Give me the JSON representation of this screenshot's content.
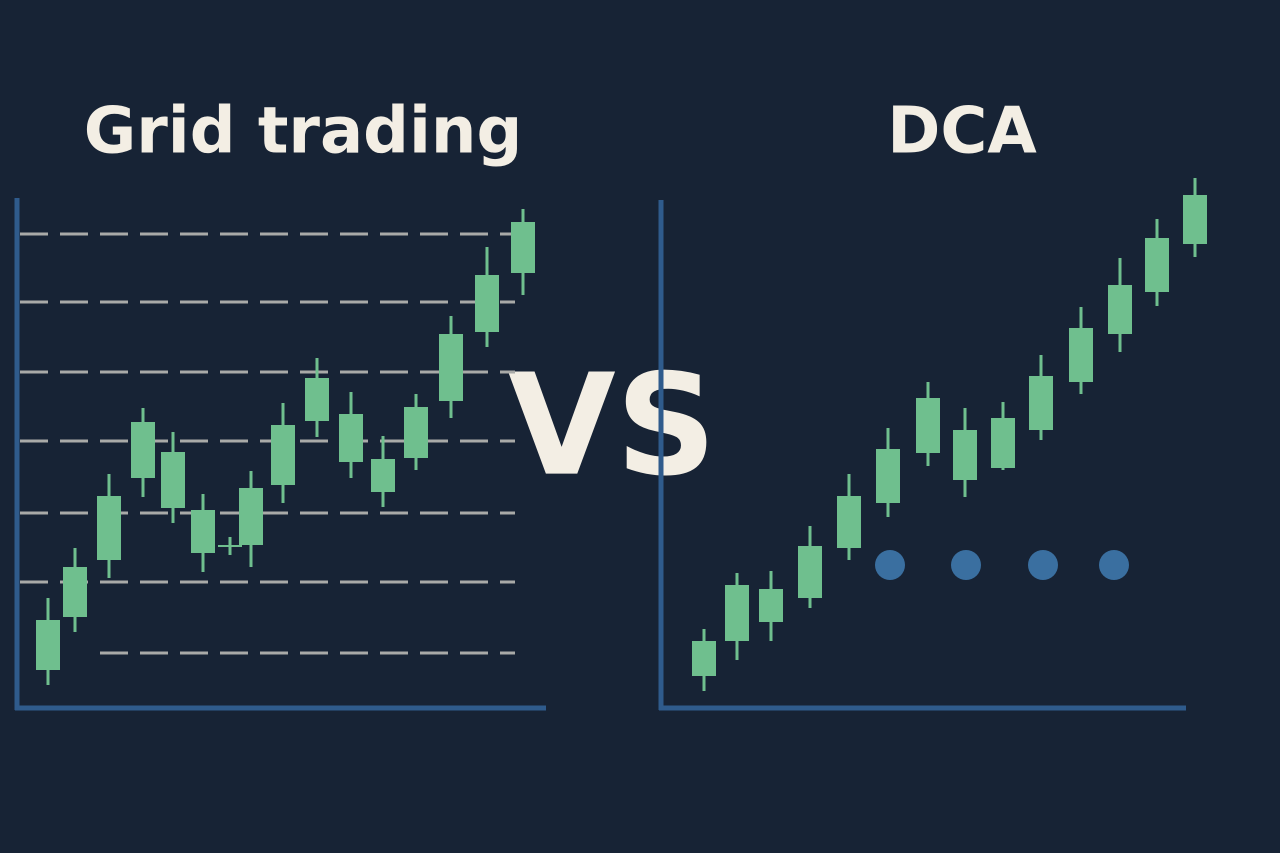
{
  "left_panel": {
    "title": "Grid trading"
  },
  "center": {
    "label": "VS"
  },
  "right_panel": {
    "title": "DCA"
  }
}
